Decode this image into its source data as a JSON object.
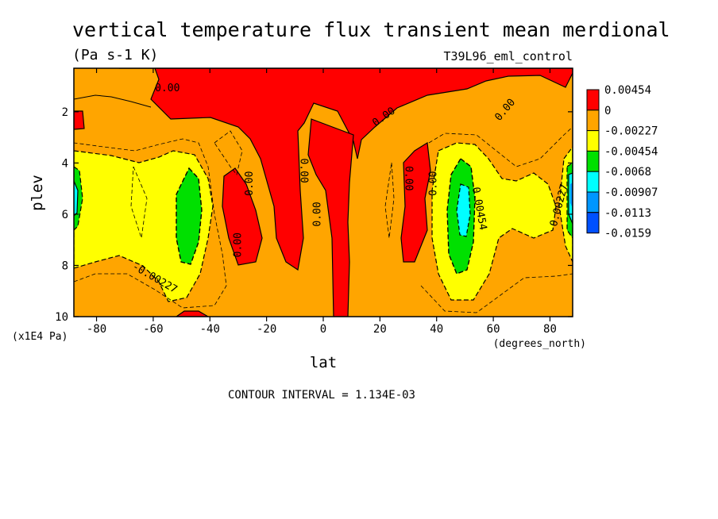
{
  "chart_data": {
    "type": "heatmap",
    "title": "vertical temperature flux transient mean merdional",
    "subtitle": "(Pa s-1 K)",
    "dataset_label": "T39L96_eml_control",
    "xlabel": "lat",
    "x_unit_label": "(degrees_north)",
    "ylabel": "plev",
    "y_unit_label": "(x1E4 Pa)",
    "xlim": [
      -88,
      88
    ],
    "ylim": [
      10,
      0.3
    ],
    "x_ticks": [
      -80,
      -60,
      -40,
      -20,
      0,
      20,
      40,
      60,
      80
    ],
    "x_tick_labels": [
      "-80",
      "-60",
      "-40",
      "-20",
      "0",
      "20",
      "40",
      "60",
      "80"
    ],
    "y_ticks": [
      2,
      4,
      6,
      8,
      10
    ],
    "y_tick_labels": [
      "2",
      "4",
      "6",
      "8",
      "10"
    ],
    "contour_interval_label": "CONTOUR INTERVAL = 1.134E-03",
    "levels": [
      {
        "label": "0.00454",
        "color": "#ff0000"
      },
      {
        "label": "0",
        "color": "#ffa500"
      },
      {
        "label": "-0.00227",
        "color": "#ffff00"
      },
      {
        "label": "-0.00454",
        "color": "#00e000"
      },
      {
        "label": "-0.0068",
        "color": "#00ffff"
      },
      {
        "label": "-0.00907",
        "color": "#0096ff"
      },
      {
        "label": "-0.0113",
        "color": "#0050ff"
      },
      {
        "label": "-0.0159",
        "color": ""
      }
    ],
    "contour_labels": [
      {
        "text": "0.00",
        "lat": -55,
        "plev": 1.2,
        "rot": 0
      },
      {
        "text": "0.00",
        "lat": 22,
        "plev": 2.3,
        "rot": -35
      },
      {
        "text": "0.00",
        "lat": 65,
        "plev": 2.0,
        "rot": -50
      },
      {
        "text": "0.00",
        "lat": -25,
        "plev": 4.8,
        "rot": -90
      },
      {
        "text": "0.00",
        "lat": -8,
        "plev": 4.3,
        "rot": 90
      },
      {
        "text": "0.00",
        "lat": -1,
        "plev": 6.0,
        "rot": -90
      },
      {
        "text": "0.00",
        "lat": 29,
        "plev": 4.6,
        "rot": 90
      },
      {
        "text": "0.00",
        "lat": 40,
        "plev": 4.8,
        "rot": -90
      },
      {
        "text": "0.00",
        "lat": -29,
        "plev": 7.2,
        "rot": -90
      },
      {
        "text": "-0.00227",
        "lat": -60,
        "plev": 8.6,
        "rot": 30
      },
      {
        "text": "0.00454",
        "lat": 54,
        "plev": 5.8,
        "rot": 80
      },
      {
        "text": "-0.00227",
        "lat": 84,
        "plev": 5.8,
        "rot": -75
      }
    ]
  }
}
